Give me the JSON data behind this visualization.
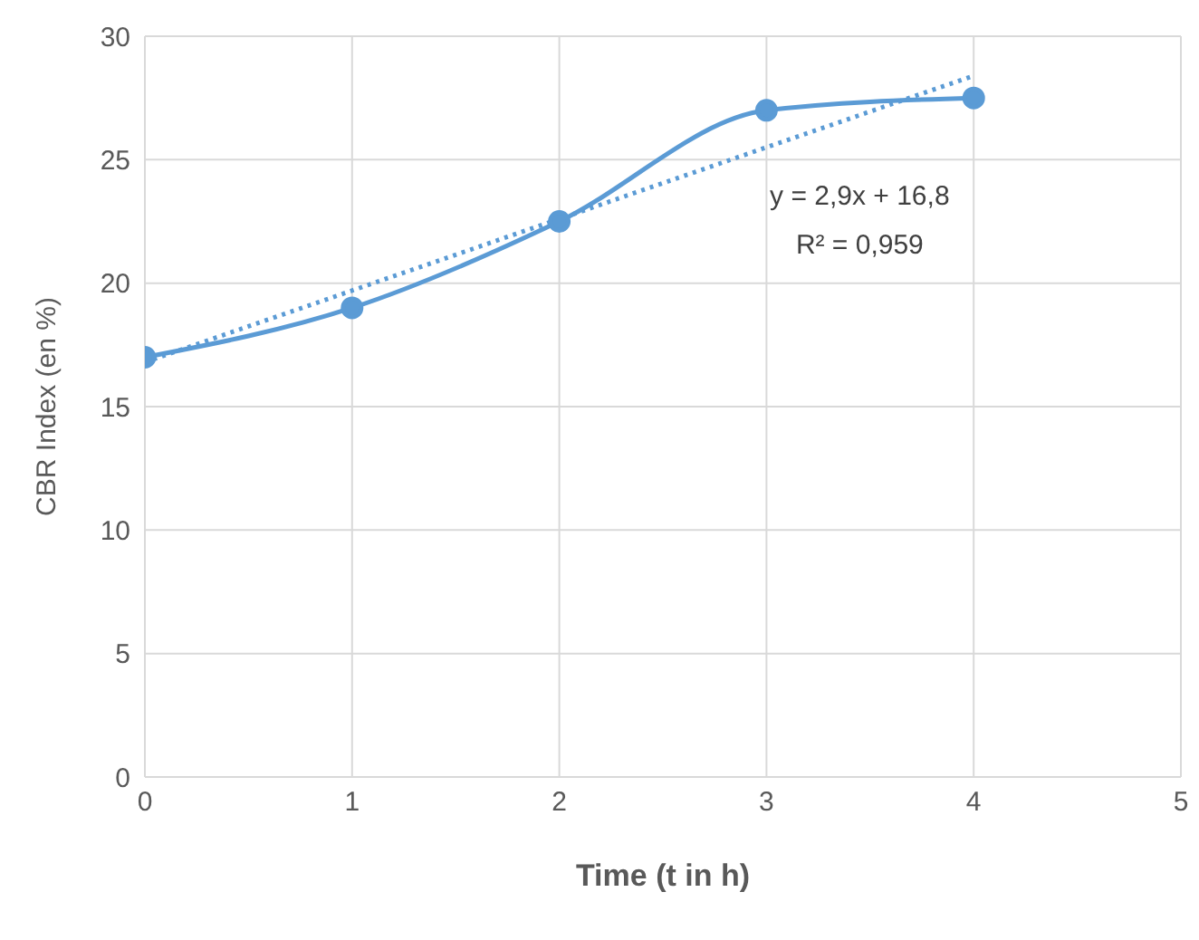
{
  "chart_data": {
    "type": "line",
    "xlabel": "Time (t in h)",
    "ylabel": "CBR Index (en %)",
    "x": [
      0,
      1,
      2,
      3,
      4
    ],
    "series": [
      {
        "color": "#5b9bd5",
        "values": [
          17,
          19,
          22.5,
          27,
          27.5
        ],
        "marker": "circle",
        "line_style": "solid"
      },
      {
        "type": "line",
        "color": "#5b9bd5",
        "x": [
          0,
          4
        ],
        "values": [
          16.8,
          28.4
        ],
        "marker": "none",
        "line_style": "dotted"
      }
    ],
    "xlim": [
      0,
      5
    ],
    "xticks": [
      0,
      1,
      2,
      3,
      4,
      5
    ],
    "ylim": [
      0,
      30
    ],
    "yticks": [
      0,
      5,
      10,
      15,
      20,
      25,
      30
    ],
    "grid": true,
    "annotations": [
      "y = 2,9x + 16,8",
      "R² = 0,959"
    ]
  }
}
